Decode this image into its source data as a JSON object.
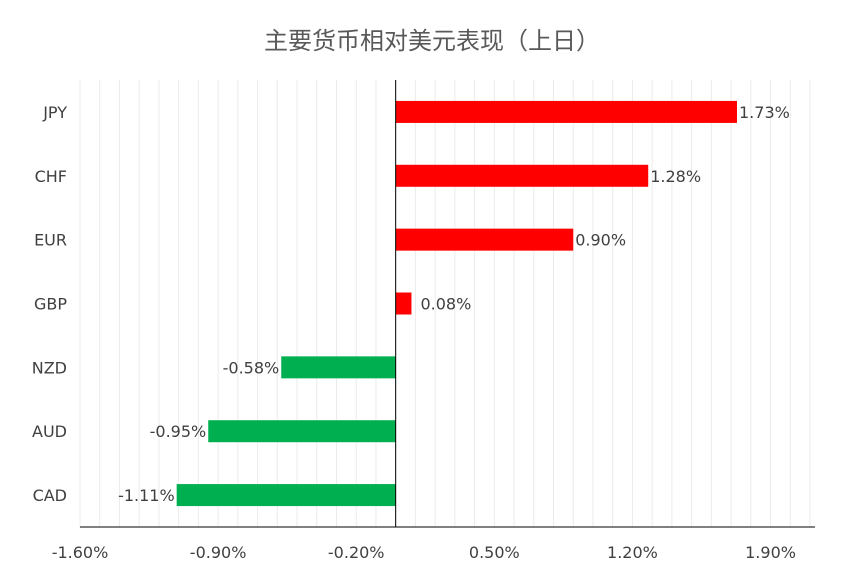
{
  "chart_data": {
    "type": "bar",
    "orientation": "horizontal",
    "title": "主要货币相对美元表现（上日）",
    "categories": [
      "JPY",
      "CHF",
      "EUR",
      "GBP",
      "NZD",
      "AUD",
      "CAD"
    ],
    "values": [
      1.73,
      1.28,
      0.9,
      0.08,
      -0.58,
      -0.95,
      -1.11
    ],
    "data_labels": [
      "1.73%",
      "1.28%",
      "0.90%",
      "0.08%",
      "-0.58%",
      "-0.95%",
      "-1.11%"
    ],
    "xlim": [
      -1.6,
      2.1
    ],
    "x_ticks": [
      -1.6,
      -0.9,
      -0.2,
      0.5,
      1.2,
      1.9
    ],
    "x_tick_labels": [
      "-1.60%",
      "-0.90%",
      "-0.20%",
      "0.50%",
      "1.20%",
      "1.90%"
    ],
    "grid": "vertical-minor",
    "colors": {
      "positive": "#ff0000",
      "negative": "#00b050",
      "axis": "#000000",
      "grid": "#ebebeb"
    }
  }
}
